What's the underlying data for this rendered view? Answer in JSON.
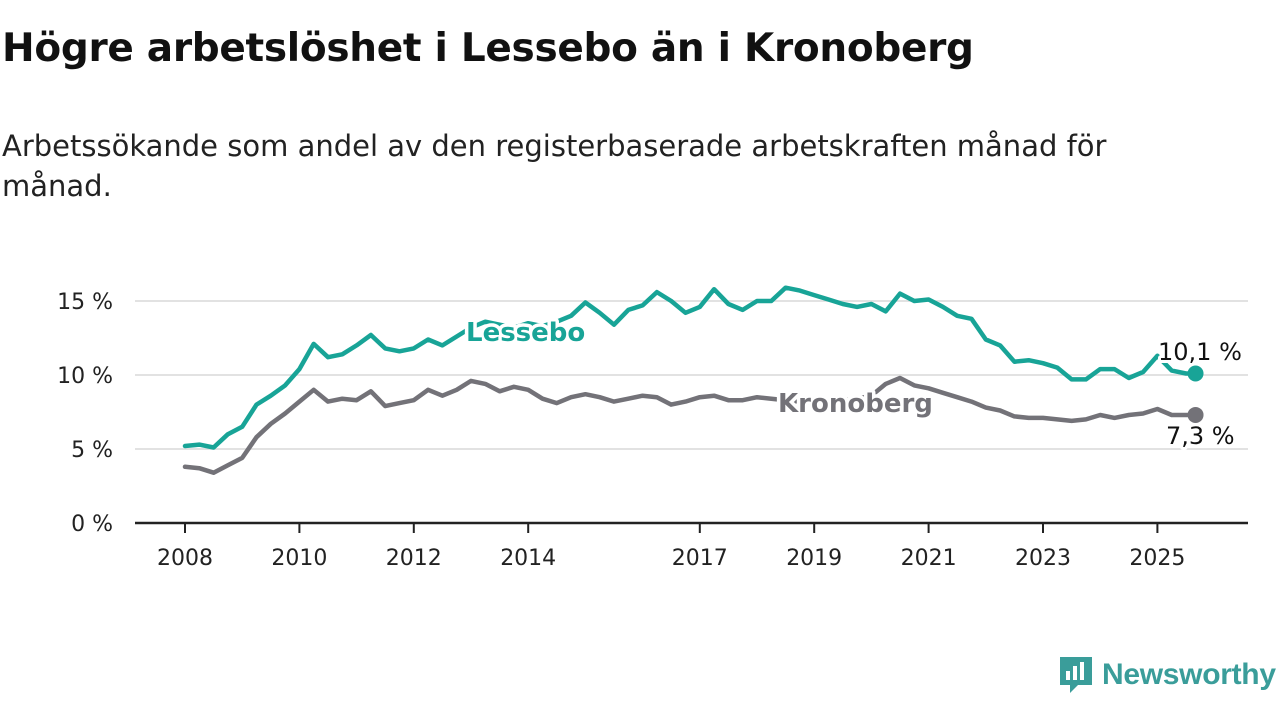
{
  "header": {
    "title": "Högre arbetslöshet i Lessebo än i Kronoberg",
    "subtitle": "Arbetssökande som andel av den registerbaserade arbetskraften månad för månad."
  },
  "brand": {
    "name": "Newsworthy",
    "icon": "newsworthy-logo-icon",
    "color": "#3a9d9a"
  },
  "chart_data": {
    "type": "line",
    "title": "Högre arbetslöshet i Lessebo än i Kronoberg",
    "subtitle": "Arbetssökande som andel av den registerbaserade arbetskraften månad för månad.",
    "x_range": [
      "2008-01",
      "2025-09"
    ],
    "ylim": [
      0,
      17
    ],
    "grid": true,
    "legend": "inline-labels",
    "x_ticks": [
      {
        "value": "2008-01",
        "label": "2008"
      },
      {
        "value": "2010-01",
        "label": "2010"
      },
      {
        "value": "2012-01",
        "label": "2012"
      },
      {
        "value": "2014-01",
        "label": "2014"
      },
      {
        "value": "2017-01",
        "label": "2017"
      },
      {
        "value": "2019-01",
        "label": "2019"
      },
      {
        "value": "2021-01",
        "label": "2021"
      },
      {
        "value": "2023-01",
        "label": "2023"
      },
      {
        "value": "2025-01",
        "label": "2025"
      }
    ],
    "y_ticks": [
      {
        "value": 0,
        "label": "0 %"
      },
      {
        "value": 5,
        "label": "5 %"
      },
      {
        "value": 10,
        "label": "10 %"
      },
      {
        "value": 15,
        "label": "15 %"
      }
    ],
    "series": [
      {
        "name": "Lessebo",
        "color": "#18a497",
        "end_label": "10,1 %",
        "points": [
          [
            "2008-01",
            5.2
          ],
          [
            "2008-04",
            5.3
          ],
          [
            "2008-07",
            5.1
          ],
          [
            "2008-10",
            6.0
          ],
          [
            "2009-01",
            6.5
          ],
          [
            "2009-04",
            8.0
          ],
          [
            "2009-07",
            8.6
          ],
          [
            "2009-10",
            9.3
          ],
          [
            "2010-01",
            10.4
          ],
          [
            "2010-04",
            12.1
          ],
          [
            "2010-07",
            11.2
          ],
          [
            "2010-10",
            11.4
          ],
          [
            "2011-01",
            12.0
          ],
          [
            "2011-04",
            12.7
          ],
          [
            "2011-07",
            11.8
          ],
          [
            "2011-10",
            11.6
          ],
          [
            "2012-01",
            11.8
          ],
          [
            "2012-04",
            12.4
          ],
          [
            "2012-07",
            12.0
          ],
          [
            "2012-10",
            12.6
          ],
          [
            "2013-01",
            13.2
          ],
          [
            "2013-04",
            13.6
          ],
          [
            "2013-07",
            13.4
          ],
          [
            "2013-10",
            13.2
          ],
          [
            "2014-01",
            13.5
          ],
          [
            "2014-04",
            13.3
          ],
          [
            "2014-07",
            13.6
          ],
          [
            "2014-10",
            14.0
          ],
          [
            "2015-01",
            14.9
          ],
          [
            "2015-04",
            14.2
          ],
          [
            "2015-07",
            13.4
          ],
          [
            "2015-10",
            14.4
          ],
          [
            "2016-01",
            14.7
          ],
          [
            "2016-04",
            15.6
          ],
          [
            "2016-07",
            15.0
          ],
          [
            "2016-10",
            14.2
          ],
          [
            "2017-01",
            14.6
          ],
          [
            "2017-04",
            15.8
          ],
          [
            "2017-07",
            14.8
          ],
          [
            "2017-10",
            14.4
          ],
          [
            "2018-01",
            15.0
          ],
          [
            "2018-04",
            15.0
          ],
          [
            "2018-07",
            15.9
          ],
          [
            "2018-10",
            15.7
          ],
          [
            "2019-01",
            15.4
          ],
          [
            "2019-04",
            15.1
          ],
          [
            "2019-07",
            14.8
          ],
          [
            "2019-10",
            14.6
          ],
          [
            "2020-01",
            14.8
          ],
          [
            "2020-04",
            14.3
          ],
          [
            "2020-07",
            15.5
          ],
          [
            "2020-10",
            15.0
          ],
          [
            "2021-01",
            15.1
          ],
          [
            "2021-04",
            14.6
          ],
          [
            "2021-07",
            14.0
          ],
          [
            "2021-10",
            13.8
          ],
          [
            "2022-01",
            12.4
          ],
          [
            "2022-04",
            12.0
          ],
          [
            "2022-07",
            10.9
          ],
          [
            "2022-10",
            11.0
          ],
          [
            "2023-01",
            10.8
          ],
          [
            "2023-04",
            10.5
          ],
          [
            "2023-07",
            9.7
          ],
          [
            "2023-10",
            9.7
          ],
          [
            "2024-01",
            10.4
          ],
          [
            "2024-04",
            10.4
          ],
          [
            "2024-07",
            9.8
          ],
          [
            "2024-10",
            10.2
          ],
          [
            "2025-01",
            11.3
          ],
          [
            "2025-04",
            10.3
          ],
          [
            "2025-07",
            10.1
          ],
          [
            "2025-09",
            10.1
          ]
        ]
      },
      {
        "name": "Kronoberg",
        "color": "#737278",
        "end_label": "7,3 %",
        "points": [
          [
            "2008-01",
            3.8
          ],
          [
            "2008-04",
            3.7
          ],
          [
            "2008-07",
            3.4
          ],
          [
            "2008-10",
            3.9
          ],
          [
            "2009-01",
            4.4
          ],
          [
            "2009-04",
            5.8
          ],
          [
            "2009-07",
            6.7
          ],
          [
            "2009-10",
            7.4
          ],
          [
            "2010-01",
            8.2
          ],
          [
            "2010-04",
            9.0
          ],
          [
            "2010-07",
            8.2
          ],
          [
            "2010-10",
            8.4
          ],
          [
            "2011-01",
            8.3
          ],
          [
            "2011-04",
            8.9
          ],
          [
            "2011-07",
            7.9
          ],
          [
            "2011-10",
            8.1
          ],
          [
            "2012-01",
            8.3
          ],
          [
            "2012-04",
            9.0
          ],
          [
            "2012-07",
            8.6
          ],
          [
            "2012-10",
            9.0
          ],
          [
            "2013-01",
            9.6
          ],
          [
            "2013-04",
            9.4
          ],
          [
            "2013-07",
            8.9
          ],
          [
            "2013-10",
            9.2
          ],
          [
            "2014-01",
            9.0
          ],
          [
            "2014-04",
            8.4
          ],
          [
            "2014-07",
            8.1
          ],
          [
            "2014-10",
            8.5
          ],
          [
            "2015-01",
            8.7
          ],
          [
            "2015-04",
            8.5
          ],
          [
            "2015-07",
            8.2
          ],
          [
            "2015-10",
            8.4
          ],
          [
            "2016-01",
            8.6
          ],
          [
            "2016-04",
            8.5
          ],
          [
            "2016-07",
            8.0
          ],
          [
            "2016-10",
            8.2
          ],
          [
            "2017-01",
            8.5
          ],
          [
            "2017-04",
            8.6
          ],
          [
            "2017-07",
            8.3
          ],
          [
            "2017-10",
            8.3
          ],
          [
            "2018-01",
            8.5
          ],
          [
            "2018-04",
            8.4
          ],
          [
            "2018-07",
            8.3
          ],
          [
            "2018-10",
            8.2
          ],
          [
            "2019-01",
            8.1
          ],
          [
            "2019-04",
            8.2
          ],
          [
            "2019-07",
            8.3
          ],
          [
            "2019-10",
            8.4
          ],
          [
            "2020-01",
            8.6
          ],
          [
            "2020-04",
            9.4
          ],
          [
            "2020-07",
            9.8
          ],
          [
            "2020-10",
            9.3
          ],
          [
            "2021-01",
            9.1
          ],
          [
            "2021-04",
            8.8
          ],
          [
            "2021-07",
            8.5
          ],
          [
            "2021-10",
            8.2
          ],
          [
            "2022-01",
            7.8
          ],
          [
            "2022-04",
            7.6
          ],
          [
            "2022-07",
            7.2
          ],
          [
            "2022-10",
            7.1
          ],
          [
            "2023-01",
            7.1
          ],
          [
            "2023-04",
            7.0
          ],
          [
            "2023-07",
            6.9
          ],
          [
            "2023-10",
            7.0
          ],
          [
            "2024-01",
            7.3
          ],
          [
            "2024-04",
            7.1
          ],
          [
            "2024-07",
            7.3
          ],
          [
            "2024-10",
            7.4
          ],
          [
            "2025-01",
            7.7
          ],
          [
            "2025-04",
            7.3
          ],
          [
            "2025-07",
            7.3
          ],
          [
            "2025-09",
            7.3
          ]
        ]
      }
    ]
  }
}
